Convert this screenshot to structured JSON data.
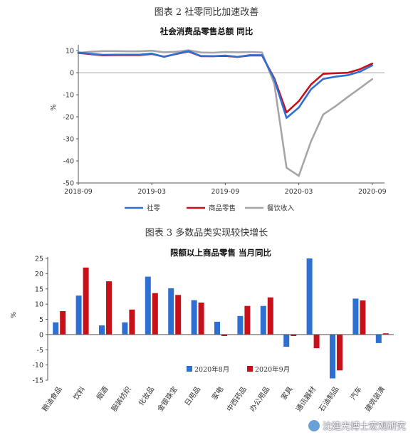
{
  "captions": {
    "fig2": "图表 2  社零同比加速改善",
    "fig3": "图表 3  多数品类实现较快增长"
  },
  "watermark": "沈建光博士宏观研究",
  "colors": {
    "blue": "#2e6fd4",
    "red": "#c8101a",
    "gray": "#a6a6a6"
  },
  "chart_data": [
    {
      "type": "line",
      "title": "社会消费品零售总额 同比",
      "ylabel": "%",
      "ylim": [
        -50,
        12
      ],
      "yticks": [
        10,
        0,
        -10,
        -20,
        -30,
        -40,
        -50
      ],
      "xlim": [
        "2018-09",
        "2020-10"
      ],
      "xticks": [
        "2018-09",
        "2019-03",
        "2019-09",
        "2020-03",
        "2020-09"
      ],
      "x": [
        "2018-09",
        "2018-10",
        "2018-11",
        "2018-12",
        "2019-01",
        "2019-02",
        "2019-03",
        "2019-04",
        "2019-05",
        "2019-06",
        "2019-07",
        "2019-08",
        "2019-09",
        "2019-10",
        "2019-11",
        "2019-12",
        "2020-01",
        "2020-02",
        "2020-03",
        "2020-04",
        "2020-05",
        "2020-06",
        "2020-07",
        "2020-08",
        "2020-09"
      ],
      "series": [
        {
          "name": "社零",
          "color": "#2e6fd4",
          "values": [
            9.2,
            8.6,
            8.1,
            8.2,
            8.2,
            8.2,
            8.7,
            7.2,
            8.6,
            9.8,
            7.6,
            7.5,
            7.8,
            7.2,
            8.0,
            8.0,
            -3.0,
            -20.5,
            -15.8,
            -7.5,
            -2.8,
            -1.8,
            -1.1,
            0.5,
            3.3
          ]
        },
        {
          "name": "商品零售",
          "color": "#c8101a",
          "values": [
            9.0,
            8.4,
            7.9,
            8.0,
            8.0,
            8.0,
            8.5,
            7.3,
            8.5,
            9.6,
            7.5,
            7.5,
            7.6,
            7.2,
            7.8,
            7.8,
            -2.5,
            -18.0,
            -12.9,
            -5.3,
            -0.5,
            -0.2,
            0.0,
            1.6,
            4.2
          ]
        },
        {
          "name": "餐饮收入",
          "color": "#a6a6a6",
          "values": [
            9.0,
            9.5,
            9.8,
            9.8,
            9.7,
            9.7,
            10.0,
            9.3,
            9.5,
            10.2,
            9.2,
            9.1,
            9.4,
            9.3,
            9.4,
            9.2,
            -5.0,
            -43.1,
            -46.8,
            -31.1,
            -18.9,
            -15.2,
            -11.0,
            -7.0,
            -2.9
          ]
        }
      ],
      "legend_position": "bottom"
    },
    {
      "type": "bar",
      "title": "限额以上商品零售 当月同比",
      "ylabel": "%",
      "ylim": [
        -15,
        25
      ],
      "yticks": [
        25,
        20,
        15,
        10,
        5,
        0,
        -5,
        -10,
        -15
      ],
      "categories": [
        "粮油食品",
        "饮料",
        "烟酒",
        "服装纺织",
        "化妆品",
        "金银珠宝",
        "日用品",
        "家电",
        "中西药品",
        "办公用品",
        "家具",
        "通讯器材",
        "石油制品",
        "汽车",
        "建筑装潢"
      ],
      "series": [
        {
          "name": "2020年8月",
          "color": "#2e6fd4",
          "values": [
            4.0,
            12.8,
            3.0,
            4.0,
            19.0,
            15.2,
            11.3,
            4.2,
            6.1,
            9.4,
            -4.0,
            25.0,
            -14.4,
            11.8,
            -2.8
          ]
        },
        {
          "name": "2020年9月",
          "color": "#c8101a",
          "values": [
            7.7,
            22.0,
            17.5,
            8.2,
            13.6,
            13.0,
            10.5,
            -0.5,
            9.4,
            12.2,
            -0.5,
            -4.5,
            -11.8,
            11.2,
            0.4
          ]
        }
      ],
      "legend_position": "bottom"
    }
  ]
}
